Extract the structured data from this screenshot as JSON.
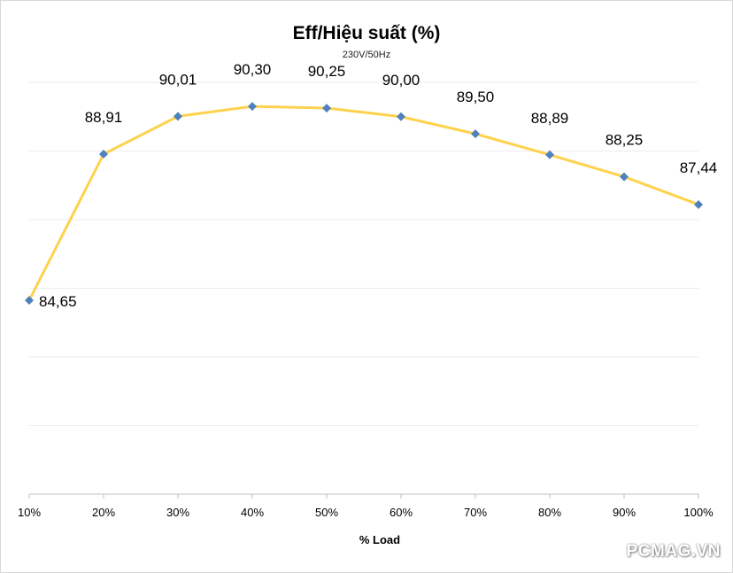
{
  "chart_data": {
    "type": "line",
    "title": "Eff/Hiệu suất (%)",
    "subtitle": "230V/50Hz",
    "xlabel": "% Load",
    "ylabel": "",
    "categories": [
      "10%",
      "20%",
      "30%",
      "40%",
      "50%",
      "60%",
      "70%",
      "80%",
      "90%",
      "100%"
    ],
    "series": [
      {
        "values": [
          84.65,
          88.91,
          90.01,
          90.3,
          90.25,
          90.0,
          89.5,
          88.89,
          88.25,
          87.44
        ],
        "labels": [
          "84,65",
          "88,91",
          "90,01",
          "90,30",
          "90,25",
          "90,00",
          "89,50",
          "88,89",
          "88,25",
          "87,44"
        ],
        "line_color": "#ffd24d",
        "marker_color": "#4f81bd",
        "marker": "diamond"
      }
    ],
    "ylim": [
      79,
      91
    ],
    "grid": true,
    "legend": "none"
  },
  "watermark": "PCMAG.VN"
}
